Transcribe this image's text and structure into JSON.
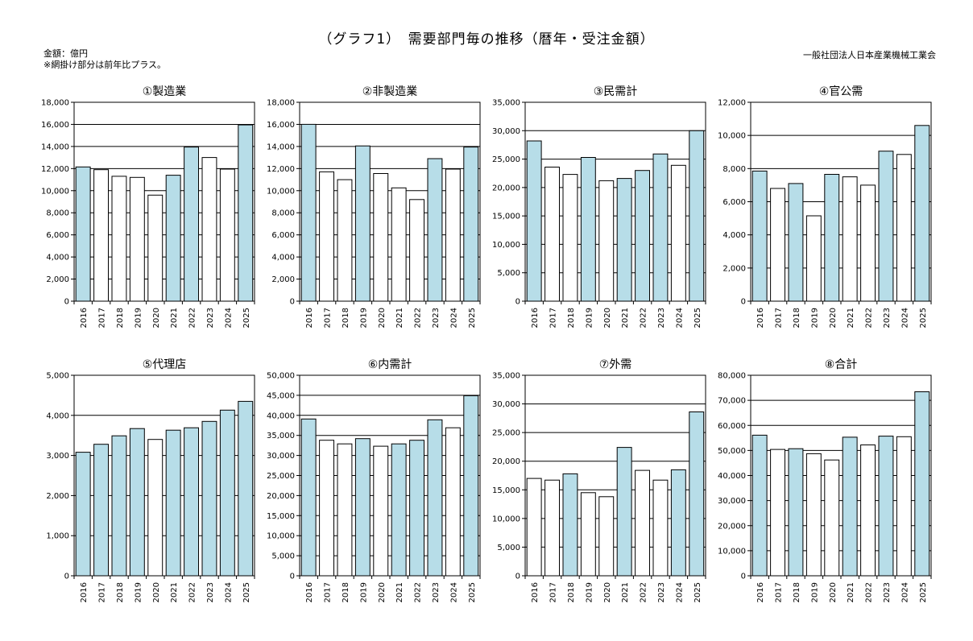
{
  "header": {
    "title": "（グラフ1）　需要部門毎の推移（暦年・受注金額）",
    "unit": "金額：億円",
    "note": "※網掛け部分は前年比プラス。",
    "organization": "一般社団法人日本産業機械工業会"
  },
  "colors": {
    "plus": "#b7dde8",
    "minus": "#ffffff",
    "stroke": "#000000"
  },
  "chart_data": [
    {
      "type": "bar",
      "title": "①製造業",
      "categories": [
        "2016",
        "2017",
        "2018",
        "2019",
        "2020",
        "2021",
        "2022",
        "2023",
        "2024",
        "2025"
      ],
      "values": [
        12150,
        11900,
        11300,
        11200,
        9600,
        11400,
        13950,
        13000,
        11950,
        15950
      ],
      "plus": [
        true,
        false,
        false,
        false,
        false,
        true,
        true,
        false,
        false,
        true
      ],
      "ylim": [
        0,
        18000
      ],
      "ystep": 2000,
      "yticks": [
        "0",
        "2,000",
        "4,000",
        "6,000",
        "8,000",
        "10,000",
        "12,000",
        "14,000",
        "16,000",
        "18,000"
      ]
    },
    {
      "type": "bar",
      "title": "②非製造業",
      "categories": [
        "2016",
        "2017",
        "2018",
        "2019",
        "2020",
        "2021",
        "2022",
        "2023",
        "2024",
        "2025"
      ],
      "values": [
        16000,
        11700,
        11000,
        14050,
        11550,
        10250,
        9200,
        12900,
        11950,
        13950
      ],
      "plus": [
        true,
        false,
        false,
        true,
        false,
        false,
        false,
        true,
        false,
        true
      ],
      "ylim": [
        0,
        18000
      ],
      "ystep": 2000,
      "yticks": [
        "0",
        "2,000",
        "4,000",
        "6,000",
        "8,000",
        "10,000",
        "12,000",
        "14,000",
        "16,000",
        "18,000"
      ]
    },
    {
      "type": "bar",
      "title": "③民需計",
      "categories": [
        "2016",
        "2017",
        "2018",
        "2019",
        "2020",
        "2021",
        "2022",
        "2023",
        "2024",
        "2025"
      ],
      "values": [
        28200,
        23600,
        22300,
        25300,
        21200,
        21600,
        23000,
        25900,
        23900,
        30000
      ],
      "plus": [
        true,
        false,
        false,
        true,
        false,
        true,
        true,
        true,
        false,
        true
      ],
      "ylim": [
        0,
        35000
      ],
      "ystep": 5000,
      "yticks": [
        "0",
        "5,000",
        "10,000",
        "15,000",
        "20,000",
        "25,000",
        "30,000",
        "35,000"
      ]
    },
    {
      "type": "bar",
      "title": "④官公需",
      "categories": [
        "2016",
        "2017",
        "2018",
        "2019",
        "2020",
        "2021",
        "2022",
        "2023",
        "2024",
        "2025"
      ],
      "values": [
        7850,
        6800,
        7100,
        5150,
        7650,
        7500,
        7000,
        9050,
        8850,
        10600
      ],
      "plus": [
        true,
        false,
        true,
        false,
        true,
        false,
        false,
        true,
        false,
        true
      ],
      "ylim": [
        0,
        12000
      ],
      "ystep": 2000,
      "yticks": [
        "0",
        "2,000",
        "4,000",
        "6,000",
        "8,000",
        "10,000",
        "12,000"
      ]
    },
    {
      "type": "bar",
      "title": "⑤代理店",
      "categories": [
        "2016",
        "2017",
        "2018",
        "2019",
        "2020",
        "2021",
        "2022",
        "2023",
        "2024",
        "2025"
      ],
      "values": [
        3080,
        3280,
        3490,
        3670,
        3400,
        3630,
        3690,
        3850,
        4130,
        4350
      ],
      "plus": [
        true,
        true,
        true,
        true,
        false,
        true,
        true,
        true,
        true,
        true
      ],
      "ylim": [
        0,
        5000
      ],
      "ystep": 1000,
      "yticks": [
        "0",
        "1,000",
        "2,000",
        "3,000",
        "4,000",
        "5,000"
      ]
    },
    {
      "type": "bar",
      "title": "⑥内需計",
      "categories": [
        "2016",
        "2017",
        "2018",
        "2019",
        "2020",
        "2021",
        "2022",
        "2023",
        "2024",
        "2025"
      ],
      "values": [
        39100,
        33800,
        32900,
        34200,
        32300,
        32900,
        33800,
        38900,
        36900,
        44900
      ],
      "plus": [
        true,
        false,
        false,
        true,
        false,
        true,
        true,
        true,
        false,
        true
      ],
      "ylim": [
        0,
        50000
      ],
      "ystep": 5000,
      "yticks": [
        "0",
        "5,000",
        "10,000",
        "15,000",
        "20,000",
        "25,000",
        "30,000",
        "35,000",
        "40,000",
        "45,000",
        "50,000"
      ]
    },
    {
      "type": "bar",
      "title": "⑦外需",
      "categories": [
        "2016",
        "2017",
        "2018",
        "2019",
        "2020",
        "2021",
        "2022",
        "2023",
        "2024",
        "2025"
      ],
      "values": [
        17000,
        16700,
        17800,
        14500,
        13800,
        22400,
        18400,
        16700,
        18500,
        28600
      ],
      "plus": [
        false,
        false,
        true,
        false,
        false,
        true,
        false,
        false,
        true,
        true
      ],
      "ylim": [
        0,
        35000
      ],
      "ystep": 5000,
      "yticks": [
        "0",
        "5,000",
        "10,000",
        "15,000",
        "20,000",
        "25,000",
        "30,000",
        "35,000"
      ]
    },
    {
      "type": "bar",
      "title": "⑧合計",
      "categories": [
        "2016",
        "2017",
        "2018",
        "2019",
        "2020",
        "2021",
        "2022",
        "2023",
        "2024",
        "2025"
      ],
      "values": [
        56100,
        50400,
        50700,
        48700,
        46200,
        55300,
        52200,
        55700,
        55500,
        73400
      ],
      "plus": [
        true,
        false,
        true,
        false,
        false,
        true,
        false,
        true,
        false,
        true
      ],
      "ylim": [
        0,
        80000
      ],
      "ystep": 10000,
      "yticks": [
        "0",
        "10,000",
        "20,000",
        "30,000",
        "40,000",
        "50,000",
        "60,000",
        "70,000",
        "80,000"
      ]
    }
  ]
}
